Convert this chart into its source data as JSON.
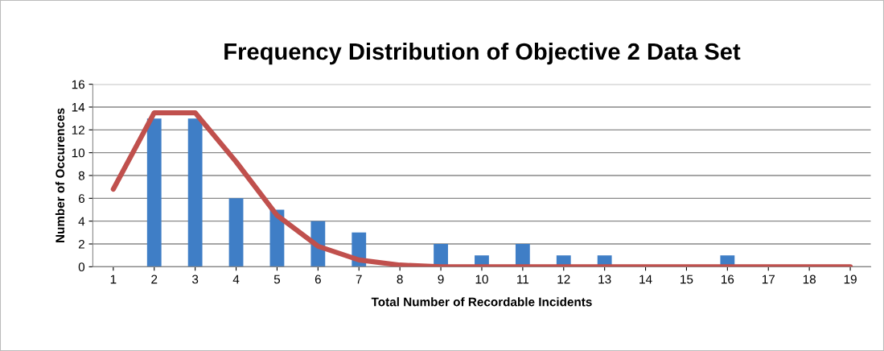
{
  "chart_data": {
    "type": "bar",
    "title": "Frequency Distribution of Objective 2 Data Set",
    "xlabel": "Total Number of Recordable Incidents",
    "ylabel": "Number of Occurences",
    "categories": [
      "1",
      "2",
      "3",
      "4",
      "5",
      "6",
      "7",
      "8",
      "9",
      "10",
      "11",
      "12",
      "13",
      "14",
      "15",
      "16",
      "17",
      "18",
      "19"
    ],
    "series": [
      {
        "color": "#3f7ec6",
        "values": [
          0,
          13,
          13,
          6,
          5,
          4,
          3,
          0,
          2,
          1,
          2,
          1,
          1,
          0,
          0,
          1,
          0,
          0,
          0
        ]
      },
      {
        "type": "line",
        "color": "#c0504d",
        "values": [
          6.8,
          13.5,
          13.5,
          9.2,
          4.5,
          1.8,
          0.6,
          0.15,
          0,
          0,
          0,
          0,
          0,
          0,
          0,
          0,
          0,
          0,
          0
        ]
      }
    ],
    "ylim": [
      0,
      16
    ],
    "yticks": [
      0,
      2,
      4,
      6,
      8,
      10,
      12,
      14,
      16
    ],
    "grid": "y"
  }
}
